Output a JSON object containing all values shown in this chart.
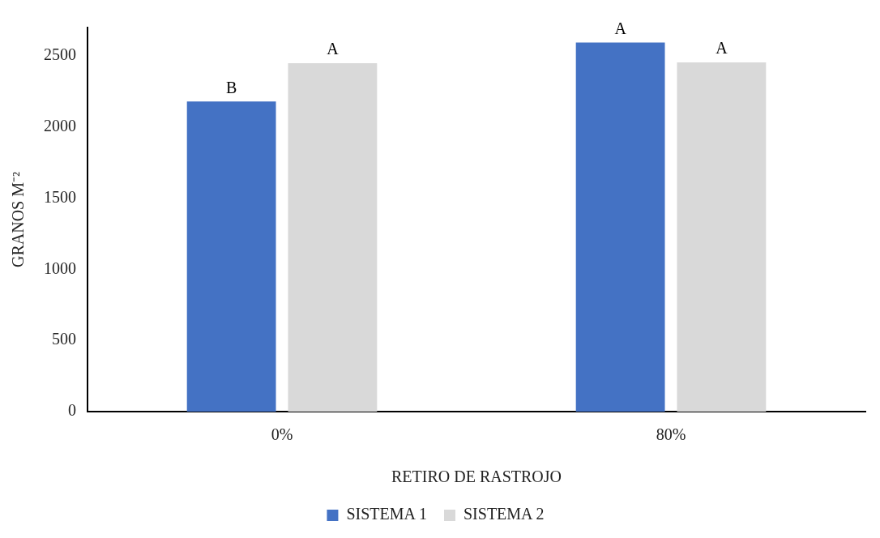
{
  "chart_data": {
    "type": "bar",
    "xlabel": "RETIRO DE RASTROJO",
    "ylabel": "GRANOS M⁻²",
    "categories": [
      "0%",
      "80%"
    ],
    "series": [
      {
        "name": "SISTEMA 1",
        "color": "#4472c4",
        "values": [
          2180,
          2595
        ],
        "value_labels": [
          "B",
          "A"
        ]
      },
      {
        "name": "SISTEMA 2",
        "color": "#d9d9d9",
        "values": [
          2450,
          2455
        ],
        "value_labels": [
          "A",
          "A"
        ]
      }
    ],
    "ylim": [
      0,
      2700
    ],
    "yticks": [
      0,
      500,
      1000,
      1500,
      2000,
      2500
    ],
    "grid": false,
    "legend": "bottom"
  }
}
